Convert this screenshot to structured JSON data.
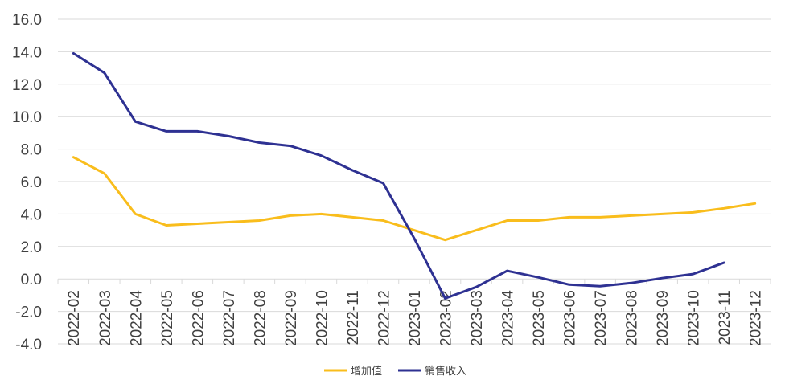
{
  "chart_data": {
    "type": "line",
    "title": "",
    "xlabel": "",
    "ylabel": "",
    "ylim": [
      -4.0,
      16.0
    ],
    "y_ticks": [
      "-4.0",
      "-2.0",
      "0.0",
      "2.0",
      "4.0",
      "6.0",
      "8.0",
      "10.0",
      "12.0",
      "14.0",
      "16.0"
    ],
    "grid": "horizontal",
    "legend_position": "bottom",
    "categories": [
      "2022-02",
      "2022-03",
      "2022-04",
      "2022-05",
      "2022-06",
      "2022-07",
      "2022-08",
      "2022-09",
      "2022-10",
      "2022-11",
      "2022-12",
      "2023-01",
      "2023-02",
      "2023-03",
      "2023-04",
      "2023-05",
      "2023-06",
      "2023-07",
      "2023-08",
      "2023-09",
      "2023-10",
      "2023-11",
      "2023-12"
    ],
    "series": [
      {
        "name": "增加值",
        "color": "#f9bd1c",
        "values": [
          7.5,
          6.5,
          4.0,
          3.3,
          3.4,
          3.5,
          3.6,
          3.9,
          4.0,
          3.8,
          3.6,
          3.0,
          2.4,
          3.0,
          3.6,
          3.6,
          3.8,
          3.8,
          3.9,
          4.0,
          4.1,
          4.35,
          4.65
        ]
      },
      {
        "name": "销售收入",
        "color": "#2e3192",
        "values": [
          13.9,
          12.7,
          9.7,
          9.1,
          9.1,
          8.8,
          8.4,
          8.2,
          7.6,
          6.7,
          5.9,
          2.5,
          -1.2,
          -0.5,
          0.5,
          0.1,
          -0.35,
          -0.45,
          -0.25,
          0.05,
          0.3,
          1.0,
          null
        ]
      }
    ]
  }
}
